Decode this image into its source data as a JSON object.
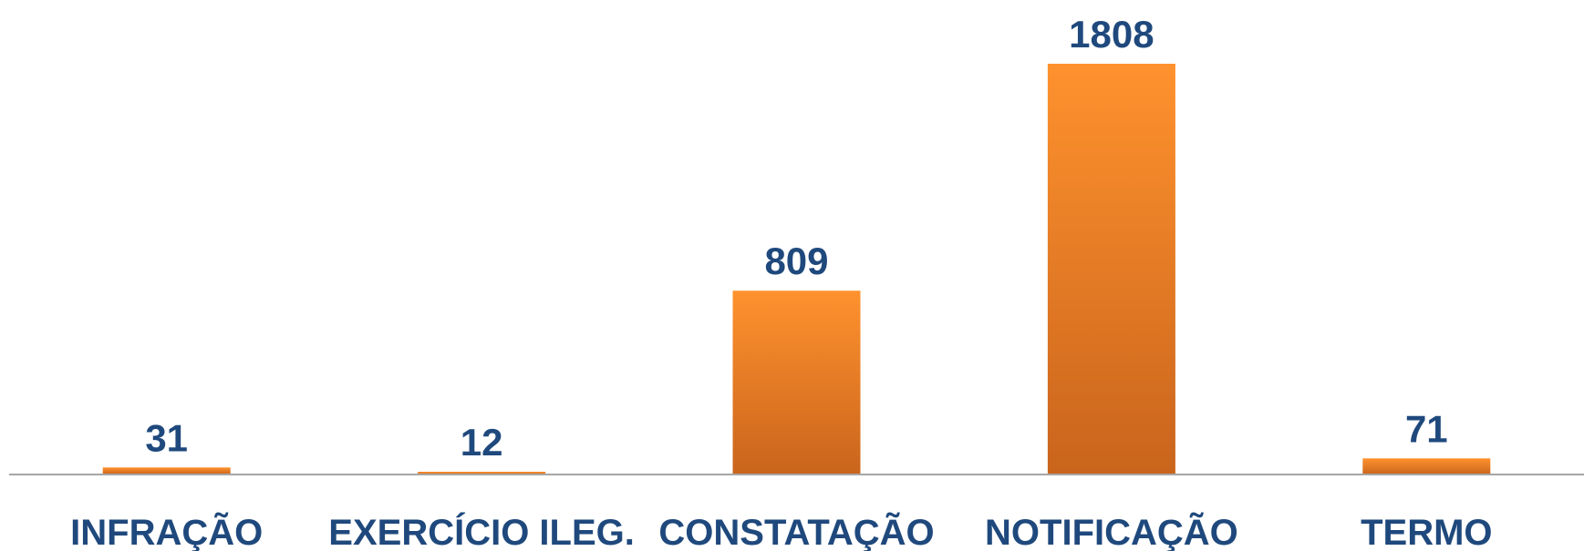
{
  "chart_data": {
    "type": "bar",
    "title": "",
    "xlabel": "",
    "ylabel": "",
    "categories": [
      "INFRAÇÃO",
      "EXERCÍCIO ILEG.",
      "CONSTATAÇÃO",
      "NOTIFICAÇÃO",
      "TERMO"
    ],
    "values": [
      31,
      12,
      809,
      1808,
      71
    ],
    "data_labels": [
      "31",
      "12",
      "809",
      "1808",
      "71"
    ],
    "ylim": [
      0,
      1808
    ],
    "grid": false,
    "legend": "none",
    "colors": {
      "bar_top": "#FF922E",
      "bar_bottom": "#C9641C",
      "label_text": "#1F497D",
      "axis": "#A6A6A6"
    }
  }
}
